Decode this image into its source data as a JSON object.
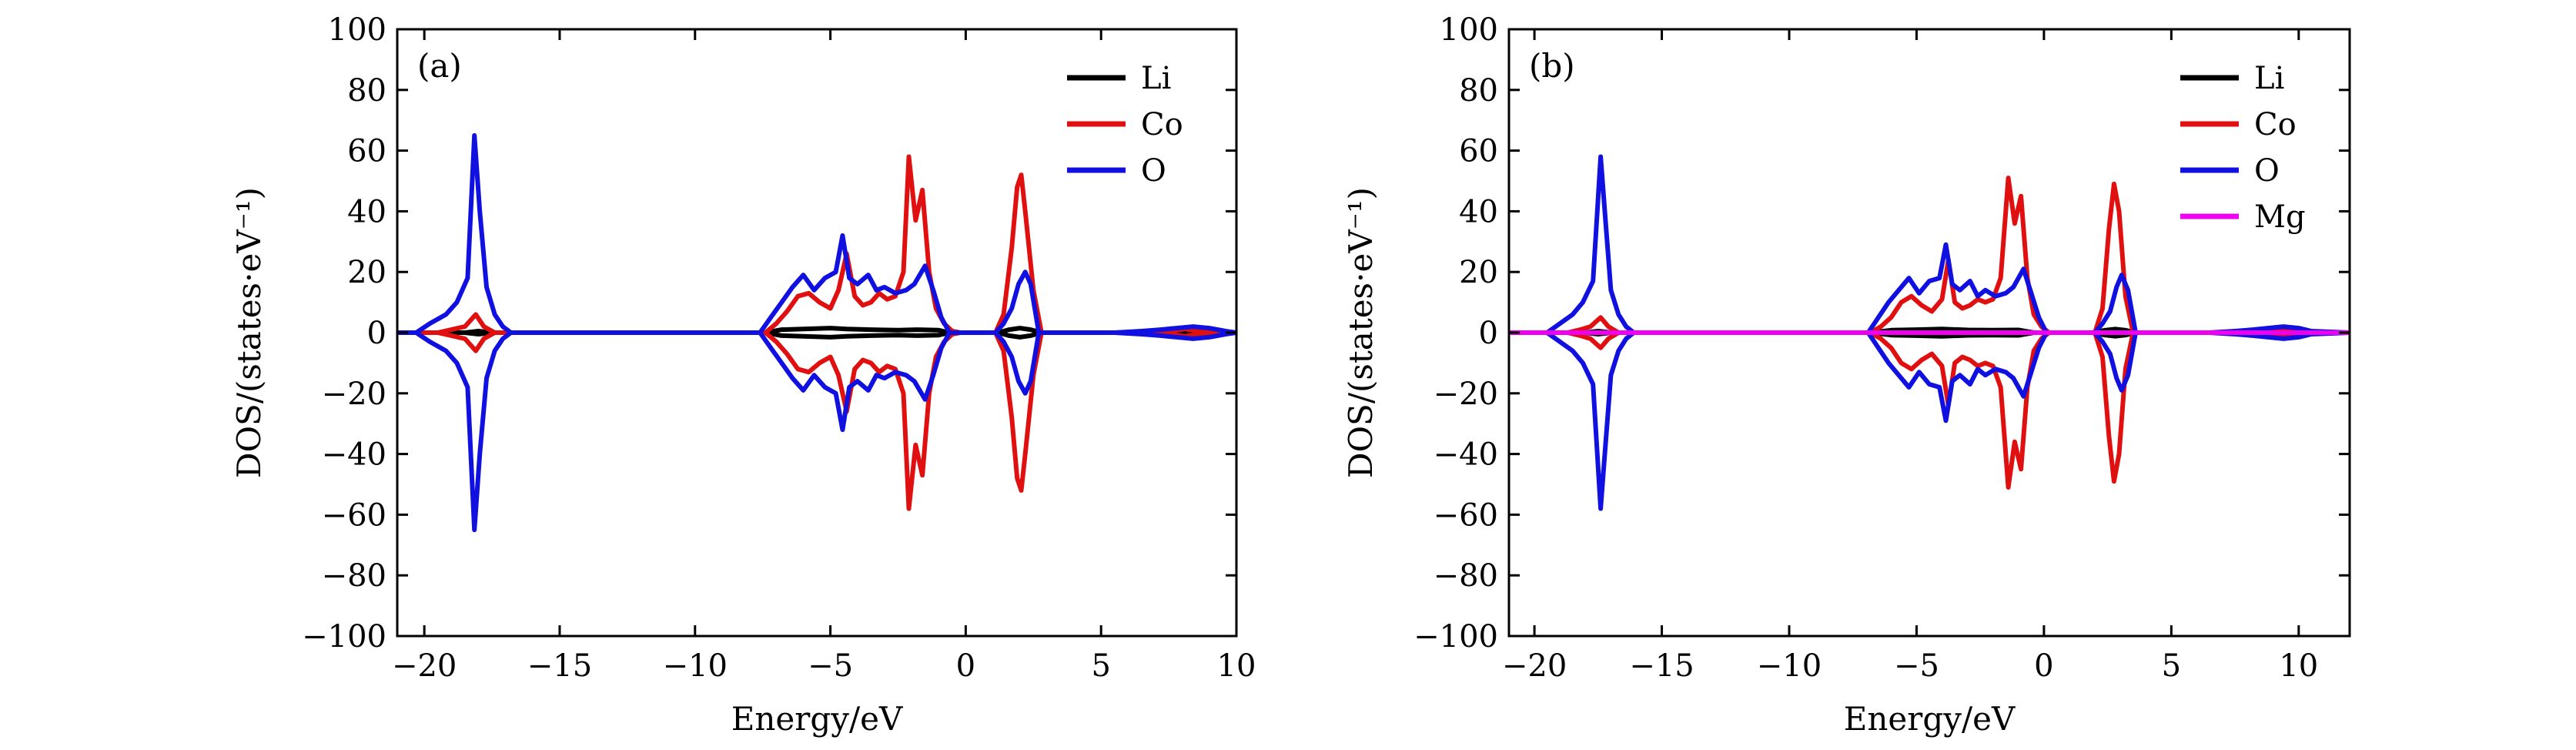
{
  "chart_data": [
    {
      "type": "line",
      "panel_label": "(a)",
      "xlabel": "Energy/eV",
      "ylabel": "DOS/(states·eV⁻¹)",
      "xlim": [
        -21,
        10
      ],
      "ylim": [
        -100,
        100
      ],
      "xticks": [
        -20,
        -15,
        -10,
        -5,
        0,
        5,
        10
      ],
      "xtick_labels": [
        "−20",
        "−15",
        "−10",
        "−5",
        "0",
        "5",
        "10"
      ],
      "yticks": [
        100,
        80,
        60,
        40,
        20,
        0,
        -20,
        -40,
        -60,
        -80,
        -100
      ],
      "ytick_labels": [
        "100",
        "80",
        "60",
        "40",
        "20",
        "0",
        "−20",
        "−40",
        "−60",
        "−80",
        "−100"
      ],
      "legend_position": "top-right",
      "grid": false,
      "mirror": true,
      "series": [
        {
          "name": "Li",
          "color": "#000000",
          "x": [
            -21,
            -18.5,
            -18.0,
            -17.5,
            -16,
            -7.4,
            -6.8,
            -6.0,
            -5.0,
            -4.4,
            -3.5,
            -2.5,
            -1.8,
            -1.0,
            -0.6,
            1.2,
            1.6,
            2.0,
            2.4,
            2.8,
            5,
            7.5,
            8.2,
            9,
            10
          ],
          "y": [
            0,
            0,
            0.5,
            0,
            0,
            0,
            1,
            1.2,
            1.5,
            1.2,
            1.0,
            0.8,
            1.0,
            0.8,
            0,
            0,
            1,
            1.5,
            1,
            0,
            0,
            0,
            0.4,
            0,
            0
          ]
        },
        {
          "name": "Co",
          "color": "#e01010",
          "x": [
            -21,
            -19.5,
            -19.0,
            -18.5,
            -18.1,
            -17.8,
            -17.4,
            -16,
            -7.4,
            -7.0,
            -6.6,
            -6.2,
            -5.8,
            -5.4,
            -5.0,
            -4.7,
            -4.4,
            -4.1,
            -3.8,
            -3.5,
            -3.2,
            -2.9,
            -2.6,
            -2.3,
            -2.1,
            -1.85,
            -1.6,
            -1.35,
            -1.1,
            -0.8,
            -0.5,
            -0.2,
            1.1,
            1.4,
            1.7,
            1.9,
            2.05,
            2.2,
            2.5,
            2.8,
            6,
            7,
            7.6,
            8.1,
            8.6,
            9.2,
            10
          ],
          "y": [
            0,
            0,
            1,
            2,
            6,
            2,
            0,
            0,
            0,
            3,
            7,
            12,
            13,
            10,
            8,
            14,
            26,
            12,
            9,
            10,
            13,
            11,
            12,
            20,
            58,
            37,
            47,
            20,
            8,
            3,
            0.5,
            0,
            0,
            6,
            28,
            48,
            52,
            40,
            14,
            0,
            0,
            0,
            0.5,
            1.2,
            0.5,
            0,
            0
          ]
        },
        {
          "name": "O",
          "color": "#1010e0",
          "x": [
            -21,
            -20.3,
            -19.8,
            -19.2,
            -18.8,
            -18.4,
            -18.15,
            -17.95,
            -17.7,
            -17.4,
            -17.1,
            -16.8,
            -7.6,
            -7.2,
            -6.8,
            -6.4,
            -6.0,
            -5.6,
            -5.2,
            -4.8,
            -4.55,
            -4.3,
            -4.0,
            -3.6,
            -3.3,
            -3.0,
            -2.6,
            -2.2,
            -1.9,
            -1.5,
            -1.2,
            -0.9,
            -0.6,
            1.1,
            1.4,
            1.7,
            1.95,
            2.2,
            2.4,
            2.7,
            5.5,
            6.5,
            7.2,
            7.8,
            8.4,
            9.0,
            9.6,
            10
          ],
          "y": [
            0,
            0,
            3,
            6,
            10,
            18,
            65,
            40,
            15,
            6,
            2,
            0,
            0,
            5,
            10,
            15,
            19,
            14,
            18,
            20,
            32,
            18,
            16,
            19,
            14,
            15,
            13,
            14,
            16,
            22,
            14,
            5,
            0,
            0,
            3,
            8,
            16,
            20,
            16,
            0,
            0,
            0.5,
            1,
            1.5,
            2,
            1.5,
            0.5,
            0
          ]
        }
      ]
    },
    {
      "type": "line",
      "panel_label": "(b)",
      "xlabel": "Energy/eV",
      "ylabel": "DOS/(states·eV⁻¹)",
      "xlim": [
        -21,
        12
      ],
      "ylim": [
        -100,
        100
      ],
      "xticks": [
        -20,
        -15,
        -10,
        -5,
        0,
        5,
        10
      ],
      "xtick_labels": [
        "−20",
        "−15",
        "−10",
        "−5",
        "0",
        "5",
        "10"
      ],
      "yticks": [
        100,
        80,
        60,
        40,
        20,
        0,
        -20,
        -40,
        -60,
        -80,
        -100
      ],
      "ytick_labels": [
        "100",
        "80",
        "60",
        "40",
        "20",
        "0",
        "−20",
        "−40",
        "−60",
        "−80",
        "−100"
      ],
      "legend_position": "top-right",
      "grid": false,
      "mirror": true,
      "series": [
        {
          "name": "Li",
          "color": "#000000",
          "x": [
            -21,
            -18.0,
            -17.5,
            -17.0,
            -16,
            -6.8,
            -6.0,
            -5.0,
            -4.0,
            -3.0,
            -2.0,
            -1.0,
            -0.4,
            1.9,
            2.4,
            2.8,
            3.2,
            3.6,
            6,
            12
          ],
          "y": [
            0,
            0,
            0.5,
            0,
            0,
            0,
            0.8,
            1.0,
            1.2,
            0.9,
            0.8,
            0.9,
            0,
            0,
            0.8,
            1.2,
            0.8,
            0,
            0,
            0
          ]
        },
        {
          "name": "Co",
          "color": "#e01010",
          "x": [
            -21,
            -18.7,
            -18.2,
            -17.8,
            -17.4,
            -17.1,
            -16.7,
            -15.5,
            -6.8,
            -6.4,
            -6.0,
            -5.6,
            -5.2,
            -4.8,
            -4.4,
            -4.0,
            -3.75,
            -3.5,
            -3.2,
            -2.9,
            -2.6,
            -2.3,
            -2.0,
            -1.7,
            -1.4,
            -1.15,
            -0.9,
            -0.65,
            -0.4,
            -0.1,
            0.2,
            2.0,
            2.3,
            2.55,
            2.75,
            2.95,
            3.2,
            3.5,
            6,
            7.5,
            8.3,
            9.0,
            9.7,
            10.3,
            12
          ],
          "y": [
            0,
            0,
            1,
            2,
            5,
            2,
            0,
            0,
            0,
            2,
            5,
            10,
            12,
            9,
            7,
            11,
            24,
            10,
            8,
            9,
            11,
            10,
            11,
            18,
            51,
            36,
            45,
            18,
            6,
            2,
            0,
            0,
            8,
            34,
            49,
            40,
            12,
            0,
            0,
            0,
            0.5,
            1.2,
            0.5,
            0,
            0
          ]
        },
        {
          "name": "O",
          "color": "#1010e0",
          "x": [
            -21,
            -19.5,
            -19.0,
            -18.5,
            -18.1,
            -17.7,
            -17.4,
            -17.2,
            -17.0,
            -16.7,
            -16.4,
            -16.1,
            -6.9,
            -6.5,
            -6.1,
            -5.7,
            -5.3,
            -4.9,
            -4.5,
            -4.1,
            -3.85,
            -3.6,
            -3.3,
            -2.9,
            -2.6,
            -2.3,
            -1.9,
            -1.5,
            -1.2,
            -0.8,
            -0.5,
            -0.2,
            0.1,
            2.0,
            2.3,
            2.6,
            2.85,
            3.05,
            3.3,
            3.6,
            6.5,
            7.5,
            8.2,
            8.8,
            9.4,
            10.0,
            10.5,
            12
          ],
          "y": [
            0,
            0,
            3,
            6,
            10,
            17,
            58,
            36,
            14,
            6,
            2,
            0,
            0,
            5,
            10,
            14,
            18,
            13,
            17,
            18,
            29,
            16,
            14,
            17,
            12,
            14,
            12,
            13,
            15,
            21,
            13,
            5,
            0,
            0,
            3,
            7,
            15,
            19,
            14,
            0,
            0,
            0.5,
            1,
            1.5,
            2,
            1.5,
            0.5,
            0
          ]
        },
        {
          "name": "Mg",
          "color": "#ee00ee",
          "x": [
            -21,
            12
          ],
          "y": [
            0,
            0
          ]
        }
      ]
    }
  ]
}
